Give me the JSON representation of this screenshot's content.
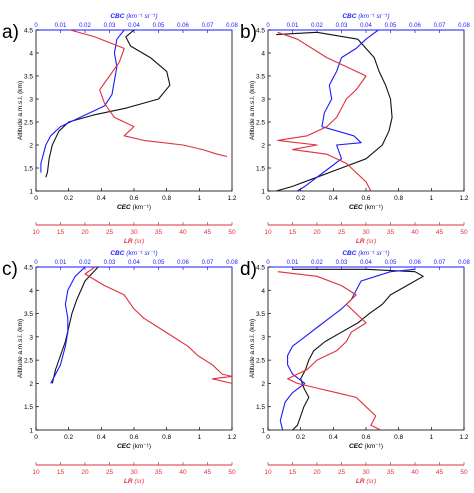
{
  "colors": {
    "black": "#111111",
    "blue": "#1a1aff",
    "red": "#e0303a"
  },
  "chart_data": [
    {
      "panel": "a)",
      "type": "line",
      "xlabel_bottom": "CEC",
      "xlabel_bottom_unit": "(km⁻¹)",
      "xlabel_top": "CBC",
      "xlabel_top_unit": "(km⁻¹ sr⁻¹)",
      "xlabel_lr": "LR",
      "xlabel_lr_unit": "(sr)",
      "ylabel": "Altitude a.m.s.l. (km)",
      "xlim_bottom": [
        0,
        1.2
      ],
      "xlim_top": [
        0,
        0.08
      ],
      "xlim_lr": [
        10,
        50
      ],
      "ylim": [
        1,
        4.5
      ],
      "xticks_bottom": [
        "0",
        "0.2",
        "0.4",
        "0.6",
        "0.8",
        "1",
        "1.2"
      ],
      "xticks_top": [
        "0",
        "0.01",
        "0.02",
        "0.03",
        "0.04",
        "0.05",
        "0.06",
        "0.07",
        "0.08"
      ],
      "xticks_lr": [
        "10",
        "15",
        "20",
        "25",
        "30",
        "35",
        "40",
        "45",
        "50"
      ],
      "yticks": [
        "1",
        "1.5",
        "2",
        "2.5",
        "3",
        "3.5",
        "4",
        "4.5"
      ],
      "series": [
        {
          "color": "black",
          "axis": "bottom",
          "points": [
            [
              0.6,
              4.5
            ],
            [
              0.55,
              4.35
            ],
            [
              0.58,
              4.15
            ],
            [
              0.7,
              3.9
            ],
            [
              0.8,
              3.6
            ],
            [
              0.82,
              3.3
            ],
            [
              0.75,
              3.0
            ],
            [
              0.55,
              2.8
            ],
            [
              0.35,
              2.65
            ],
            [
              0.2,
              2.5
            ],
            [
              0.14,
              2.3
            ],
            [
              0.1,
              2.0
            ],
            [
              0.08,
              1.7
            ],
            [
              0.07,
              1.4
            ],
            [
              0.06,
              1.3
            ]
          ]
        },
        {
          "color": "blue",
          "axis": "top",
          "points": [
            [
              0.036,
              4.5
            ],
            [
              0.033,
              4.3
            ],
            [
              0.032,
              4.0
            ],
            [
              0.033,
              3.7
            ],
            [
              0.032,
              3.4
            ],
            [
              0.031,
              3.1
            ],
            [
              0.028,
              2.85
            ],
            [
              0.018,
              2.6
            ],
            [
              0.01,
              2.4
            ],
            [
              0.006,
              2.2
            ],
            [
              0.004,
              2.0
            ],
            [
              0.003,
              1.8
            ],
            [
              0.002,
              1.6
            ],
            [
              0.002,
              1.4
            ]
          ]
        },
        {
          "color": "red",
          "axis": "lr",
          "points": [
            [
              17,
              4.5
            ],
            [
              22,
              4.35
            ],
            [
              28,
              4.1
            ],
            [
              27,
              3.8
            ],
            [
              25,
              3.5
            ],
            [
              23,
              3.2
            ],
            [
              24,
              2.9
            ],
            [
              26,
              2.6
            ],
            [
              30,
              2.4
            ],
            [
              28,
              2.2
            ],
            [
              32,
              2.1
            ],
            [
              40,
              2.0
            ],
            [
              44,
              1.9
            ],
            [
              47,
              1.8
            ],
            [
              49,
              1.75
            ]
          ]
        }
      ]
    },
    {
      "panel": "b)",
      "type": "line",
      "xlabel_bottom": "CEC",
      "xlabel_bottom_unit": "(km⁻¹)",
      "xlabel_top": "CBC",
      "xlabel_top_unit": "(km⁻¹ sr⁻¹)",
      "xlabel_lr": "LR",
      "xlabel_lr_unit": "(sr)",
      "ylabel": "Altitude a.m.s.l. (km)",
      "xlim_bottom": [
        0,
        1.2
      ],
      "xlim_top": [
        0,
        0.08
      ],
      "xlim_lr": [
        10,
        50
      ],
      "ylim": [
        1,
        4.5
      ],
      "xticks_bottom": [
        "0",
        "0.2",
        "0.4",
        "0.6",
        "0.8",
        "1",
        "1.2"
      ],
      "xticks_top": [
        "0",
        "0.01",
        "0.02",
        "0.03",
        "0.04",
        "0.05",
        "0.06",
        "0.07",
        "0.08"
      ],
      "xticks_lr": [
        "10",
        "15",
        "20",
        "25",
        "30",
        "35",
        "40",
        "45",
        "50"
      ],
      "yticks": [
        "1",
        "1.5",
        "2",
        "2.5",
        "3",
        "3.5",
        "4",
        "4.5"
      ],
      "series": [
        {
          "color": "black",
          "axis": "bottom",
          "points": [
            [
              0.05,
              4.4
            ],
            [
              0.3,
              4.45
            ],
            [
              0.55,
              4.3
            ],
            [
              0.6,
              4.1
            ],
            [
              0.65,
              3.9
            ],
            [
              0.68,
              3.6
            ],
            [
              0.72,
              3.3
            ],
            [
              0.75,
              3.0
            ],
            [
              0.76,
              2.6
            ],
            [
              0.74,
              2.3
            ],
            [
              0.7,
              2.0
            ],
            [
              0.6,
              1.7
            ],
            [
              0.45,
              1.5
            ],
            [
              0.3,
              1.3
            ],
            [
              0.15,
              1.1
            ],
            [
              0.05,
              1.0
            ]
          ]
        },
        {
          "color": "blue",
          "axis": "top",
          "points": [
            [
              0.045,
              4.5
            ],
            [
              0.04,
              4.3
            ],
            [
              0.036,
              4.1
            ],
            [
              0.03,
              3.9
            ],
            [
              0.028,
              3.6
            ],
            [
              0.025,
              3.3
            ],
            [
              0.026,
              3.0
            ],
            [
              0.023,
              2.7
            ],
            [
              0.022,
              2.4
            ],
            [
              0.035,
              2.2
            ],
            [
              0.038,
              2.05
            ],
            [
              0.028,
              2.0
            ],
            [
              0.03,
              1.7
            ],
            [
              0.025,
              1.5
            ],
            [
              0.02,
              1.3
            ],
            [
              0.015,
              1.1
            ],
            [
              0.012,
              1.0
            ]
          ]
        },
        {
          "color": "red",
          "axis": "lr",
          "points": [
            [
              12,
              4.45
            ],
            [
              16,
              4.3
            ],
            [
              19,
              4.1
            ],
            [
              22,
              3.9
            ],
            [
              26,
              3.7
            ],
            [
              30,
              3.5
            ],
            [
              28,
              3.2
            ],
            [
              26,
              3.0
            ],
            [
              25,
              2.8
            ],
            [
              24,
              2.6
            ],
            [
              22,
              2.4
            ],
            [
              18,
              2.2
            ],
            [
              12,
              2.1
            ],
            [
              20,
              2.0
            ],
            [
              15,
              1.9
            ],
            [
              22,
              1.8
            ],
            [
              26,
              1.6
            ],
            [
              28,
              1.4
            ],
            [
              30,
              1.2
            ],
            [
              31,
              1.0
            ]
          ]
        }
      ]
    },
    {
      "panel": "c)",
      "type": "line",
      "xlabel_bottom": "CEC",
      "xlabel_bottom_unit": "(km⁻¹)",
      "xlabel_top": "CBC",
      "xlabel_top_unit": "(km⁻¹ sr⁻¹)",
      "xlabel_lr": "LR",
      "xlabel_lr_unit": "(sr)",
      "ylabel": "Altitude a.m.s.l. (km)",
      "xlim_bottom": [
        0,
        1.2
      ],
      "xlim_top": [
        0,
        0.08
      ],
      "xlim_lr": [
        10,
        50
      ],
      "ylim": [
        1,
        4.5
      ],
      "xticks_bottom": [
        "0",
        "0.2",
        "0.4",
        "0.6",
        "0.8",
        "1",
        "1.2"
      ],
      "xticks_top": [
        "0",
        "0.01",
        "0.02",
        "0.03",
        "0.04",
        "0.05",
        "0.06",
        "0.07",
        "0.08"
      ],
      "xticks_lr": [
        "10",
        "15",
        "20",
        "25",
        "30",
        "35",
        "40",
        "45",
        "50"
      ],
      "yticks": [
        "1",
        "1.5",
        "2",
        "2.5",
        "3",
        "3.5",
        "4",
        "4.5"
      ],
      "series": [
        {
          "color": "black",
          "axis": "bottom",
          "points": [
            [
              0.38,
              4.5
            ],
            [
              0.3,
              4.2
            ],
            [
              0.25,
              3.8
            ],
            [
              0.22,
              3.5
            ],
            [
              0.2,
              3.2
            ],
            [
              0.18,
              2.9
            ],
            [
              0.15,
              2.6
            ],
            [
              0.12,
              2.3
            ],
            [
              0.1,
              2.0
            ]
          ]
        },
        {
          "color": "blue",
          "axis": "top",
          "points": [
            [
              0.02,
              4.5
            ],
            [
              0.016,
              4.3
            ],
            [
              0.013,
              4.0
            ],
            [
              0.012,
              3.7
            ],
            [
              0.013,
              3.4
            ],
            [
              0.013,
              3.1
            ],
            [
              0.012,
              2.8
            ],
            [
              0.011,
              2.6
            ],
            [
              0.01,
              2.4
            ],
            [
              0.008,
              2.2
            ],
            [
              0.006,
              2.0
            ]
          ]
        },
        {
          "color": "red",
          "axis": "lr",
          "points": [
            [
              22,
              4.5
            ],
            [
              20,
              4.35
            ],
            [
              24,
              4.1
            ],
            [
              28,
              3.9
            ],
            [
              30,
              3.6
            ],
            [
              32,
              3.4
            ],
            [
              35,
              3.2
            ],
            [
              38,
              3.0
            ],
            [
              41,
              2.8
            ],
            [
              43,
              2.6
            ],
            [
              46,
              2.4
            ],
            [
              48,
              2.2
            ],
            [
              50,
              2.15
            ],
            [
              46,
              2.1
            ],
            [
              50,
              2.0
            ],
            [
              48,
              2.05
            ]
          ]
        }
      ]
    },
    {
      "panel": "d)",
      "type": "line",
      "xlabel_bottom": "CEC",
      "xlabel_bottom_unit": "(km⁻¹)",
      "xlabel_top": "CBC",
      "xlabel_top_unit": "(km⁻¹ sr⁻¹)",
      "xlabel_lr": "LR",
      "xlabel_lr_unit": "(sr)",
      "ylabel": "Altitude a.m.s.l. (km)",
      "xlim_bottom": [
        0,
        1.2
      ],
      "xlim_top": [
        0,
        0.08
      ],
      "xlim_lr": [
        10,
        50
      ],
      "ylim": [
        1,
        4.5
      ],
      "xticks_bottom": [
        "0",
        "0.2",
        "0.4",
        "0.6",
        "0.8",
        "1",
        "1.2"
      ],
      "xticks_top": [
        "0",
        "0.01",
        "0.02",
        "0.03",
        "0.04",
        "0.05",
        "0.06",
        "0.07",
        "0.08"
      ],
      "xticks_lr": [
        "10",
        "15",
        "20",
        "25",
        "30",
        "35",
        "40",
        "45",
        "50"
      ],
      "yticks": [
        "1",
        "1.5",
        "2",
        "2.5",
        "3",
        "3.5",
        "4",
        "4.5"
      ],
      "series": [
        {
          "color": "black",
          "axis": "bottom",
          "points": [
            [
              0.15,
              4.45
            ],
            [
              0.6,
              4.45
            ],
            [
              0.9,
              4.4
            ],
            [
              0.95,
              4.3
            ],
            [
              0.85,
              4.1
            ],
            [
              0.75,
              3.9
            ],
            [
              0.7,
              3.7
            ],
            [
              0.62,
              3.5
            ],
            [
              0.55,
              3.3
            ],
            [
              0.45,
              3.1
            ],
            [
              0.35,
              2.9
            ],
            [
              0.28,
              2.7
            ],
            [
              0.25,
              2.5
            ],
            [
              0.23,
              2.3
            ],
            [
              0.2,
              2.1
            ],
            [
              0.22,
              1.9
            ],
            [
              0.25,
              1.7
            ],
            [
              0.22,
              1.5
            ],
            [
              0.2,
              1.3
            ],
            [
              0.18,
              1.1
            ],
            [
              0.15,
              1.0
            ]
          ]
        },
        {
          "color": "blue",
          "axis": "top",
          "points": [
            [
              0.06,
              4.45
            ],
            [
              0.05,
              4.4
            ],
            [
              0.038,
              4.2
            ],
            [
              0.036,
              4.0
            ],
            [
              0.034,
              3.8
            ],
            [
              0.03,
              3.6
            ],
            [
              0.025,
              3.4
            ],
            [
              0.02,
              3.2
            ],
            [
              0.015,
              3.0
            ],
            [
              0.01,
              2.8
            ],
            [
              0.008,
              2.6
            ],
            [
              0.008,
              2.4
            ],
            [
              0.01,
              2.2
            ],
            [
              0.015,
              2.0
            ],
            [
              0.01,
              1.8
            ],
            [
              0.007,
              1.6
            ],
            [
              0.006,
              1.4
            ],
            [
              0.005,
              1.2
            ],
            [
              0.006,
              1.0
            ]
          ]
        },
        {
          "color": "red",
          "axis": "lr",
          "points": [
            [
              12,
              4.4
            ],
            [
              20,
              4.3
            ],
            [
              25,
              4.1
            ],
            [
              28,
              3.9
            ],
            [
              26,
              3.7
            ],
            [
              28,
              3.5
            ],
            [
              30,
              3.3
            ],
            [
              27,
              3.1
            ],
            [
              26,
              2.9
            ],
            [
              24,
              2.7
            ],
            [
              20,
              2.5
            ],
            [
              18,
              2.3
            ],
            [
              14,
              2.1
            ],
            [
              16,
              2.0
            ],
            [
              20,
              1.9
            ],
            [
              24,
              1.8
            ],
            [
              28,
              1.7
            ],
            [
              30,
              1.5
            ],
            [
              32,
              1.3
            ],
            [
              31,
              1.1
            ],
            [
              33,
              1.0
            ]
          ]
        }
      ]
    }
  ]
}
